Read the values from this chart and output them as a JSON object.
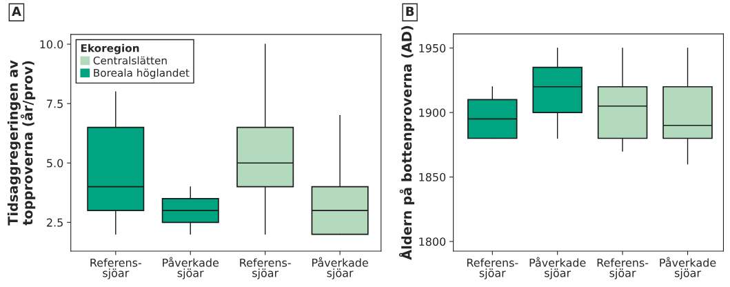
{
  "chart_data": [
    {
      "type": "box",
      "title": "A",
      "ylabel": "Tidsaggregeringen av\ntopproverna (år/prov)",
      "legend_title": "Ekoregion",
      "legend": "top left",
      "grid": false,
      "categories": [
        "Referens-\nsjöar",
        "Påverkade\nsjöar",
        "Referens-\nsjöar",
        "Påverkade\nsjöar"
      ],
      "ylim": [
        1.29,
        10.41
      ],
      "yticks": [
        {
          "value": 2.5,
          "label": "2.5"
        },
        {
          "value": 5.0,
          "label": "5.0"
        },
        {
          "value": 7.5,
          "label": "7.5"
        },
        {
          "value": 10.0,
          "label": "10.0"
        }
      ],
      "series": [
        {
          "name": "Centralslätten",
          "color": "#b3dabd",
          "boxes": [
            null,
            null,
            {
              "low": 2,
              "q1": 4,
              "median": 5,
              "q3": 6.5,
              "high": 10
            },
            {
              "low": 2,
              "q1": 2,
              "median": 3,
              "q3": 4,
              "high": 7
            }
          ]
        },
        {
          "name": "Boreala höglandet",
          "color": "#00a480",
          "boxes": [
            {
              "low": 2,
              "q1": 3,
              "median": 4,
              "q3": 6.5,
              "high": 8
            },
            {
              "low": 2,
              "q1": 2.5,
              "median": 3,
              "q3": 3.5,
              "high": 4
            },
            null,
            null
          ]
        }
      ]
    },
    {
      "type": "box",
      "title": "B",
      "ylabel": "Åldern på bottenproverna (AD)",
      "grid": false,
      "categories": [
        "Referens-\nsjöar",
        "Påverkade\nsjöar",
        "Referens-\nsjöar",
        "Påverkade\nsjöar"
      ],
      "ylim": [
        1792.5,
        1961
      ],
      "yticks": [
        1800,
        1850,
        1900,
        1950
      ],
      "series": [
        {
          "color": "#b3dabd",
          "boxes": [
            null,
            null,
            {
              "low": 1870,
              "q1": 1880,
              "median": 1905,
              "q3": 1920,
              "high": 1950
            },
            {
              "low": 1860,
              "q1": 1880,
              "median": 1890,
              "q3": 1920,
              "high": 1950
            }
          ]
        },
        {
          "color": "#00a480",
          "boxes": [
            {
              "low": 1880,
              "q1": 1880,
              "median": 1895,
              "q3": 1910,
              "high": 1920
            },
            {
              "low": 1880,
              "q1": 1900,
              "median": 1920,
              "q3": 1935,
              "high": 1950
            },
            null,
            null
          ]
        }
      ]
    }
  ]
}
